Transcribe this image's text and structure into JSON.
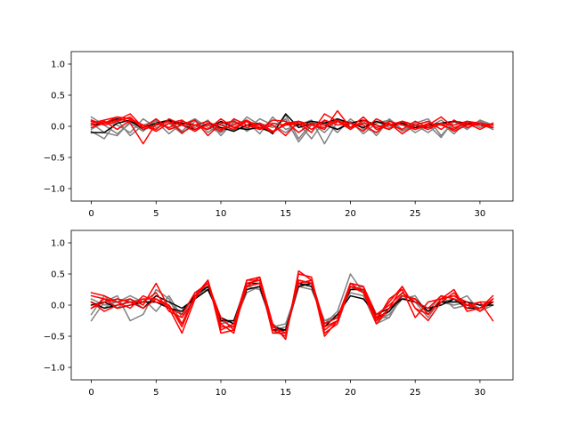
{
  "chart_data": [
    {
      "type": "line",
      "title": "",
      "xlabel": "",
      "ylabel": "",
      "xlim": [
        -1.55,
        32.55
      ],
      "ylim": [
        -1.2,
        1.2
      ],
      "grid": false,
      "xticks": [
        0,
        5,
        10,
        15,
        20,
        25,
        30
      ],
      "xtick_labels": [
        "0",
        "5",
        "10",
        "15",
        "20",
        "25",
        "30"
      ],
      "yticks": [
        1.0,
        0.5,
        0.0,
        -0.5,
        -1.0
      ],
      "ytick_labels": [
        "1.0",
        "0.5",
        "0.0",
        "−0.5",
        "−1.0"
      ],
      "x": [
        0,
        1,
        2,
        3,
        4,
        5,
        6,
        7,
        8,
        9,
        10,
        11,
        12,
        13,
        14,
        15,
        16,
        17,
        18,
        19,
        20,
        21,
        22,
        23,
        24,
        25,
        26,
        27,
        28,
        29,
        30,
        31
      ],
      "series": [
        {
          "color": "#808080",
          "values": [
            0.15,
            0.02,
            -0.12,
            0.05,
            -0.08,
            0.1,
            -0.05,
            0.02,
            0.12,
            -0.1,
            0.05,
            -0.08,
            0.15,
            0.02,
            -0.12,
            0.18,
            -0.2,
            0.05,
            -0.1,
            0.12,
            -0.05,
            0.08,
            -0.15,
            0.1,
            -0.08,
            0.05,
            0.12,
            -0.15,
            0.08,
            -0.05,
            0.1,
            0.02
          ]
        },
        {
          "color": "#808080",
          "values": [
            -0.08,
            -0.2,
            0.1,
            -0.15,
            0.02,
            0.08,
            -0.12,
            0.05,
            -0.02,
            0.1,
            -0.15,
            0.08,
            -0.05,
            0.12,
            0.02,
            -0.1,
            0.05,
            -0.2,
            0.1,
            -0.05,
            0.08,
            -0.12,
            0.05,
            0.1,
            -0.08,
            0.02,
            -0.1,
            0.05,
            -0.12,
            0.08,
            -0.02,
            0.05
          ]
        },
        {
          "color": "#808080",
          "values": [
            0.05,
            -0.1,
            -0.15,
            0.08,
            -0.05,
            0.02,
            0.1,
            -0.08,
            0.12,
            -0.02,
            -0.1,
            0.05,
            0.08,
            -0.12,
            0.15,
            -0.05,
            0.02,
            0.1,
            -0.28,
            0.08,
            0.05,
            -0.02,
            -0.1,
            0.12,
            -0.05,
            0.08,
            -0.02,
            0.1,
            -0.05,
            0.02,
            0.08,
            -0.02
          ]
        },
        {
          "color": "#808080",
          "values": [
            -0.05,
            0.08,
            0.02,
            -0.1,
            0.12,
            -0.02,
            0.05,
            -0.12,
            0.08,
            0.02,
            -0.05,
            0.1,
            -0.08,
            0.05,
            -0.02,
            0.12,
            -0.25,
            0.02,
            0.08,
            -0.1,
            0.12,
            -0.05,
            0.08,
            -0.02,
            0.05,
            -0.1,
            0.02,
            -0.18,
            0.1,
            -0.02,
            0.05,
            -0.05
          ]
        },
        {
          "color": "#000000",
          "values": [
            -0.1,
            -0.1,
            0.05,
            0.1,
            -0.05,
            0.02,
            0.08,
            0.02,
            -0.05,
            0.05,
            -0.02,
            -0.08,
            0.02,
            0.05,
            -0.12,
            0.2,
            -0.02,
            0.05,
            0.02,
            -0.05,
            0.05,
            0.1,
            0.02,
            -0.05,
            0.08,
            0.02,
            -0.02,
            0.05,
            0.08,
            0.05,
            0.02,
            -0.02
          ]
        },
        {
          "color": "#000000",
          "values": [
            0.02,
            0.05,
            0.12,
            0.08,
            -0.02,
            0.05,
            0.1,
            0.05,
            0.02,
            -0.05,
            0.08,
            -0.02,
            -0.05,
            -0.02,
            -0.1,
            0.05,
            0.02,
            0.08,
            0.05,
            0.12,
            0.05,
            -0.02,
            0.08,
            0.02,
            0.05,
            -0.02,
            0.02,
            0.05,
            0.08,
            0.02,
            0.05,
            0.02
          ]
        },
        {
          "color": "#ff0000",
          "values": [
            0.05,
            0.1,
            0.15,
            0.05,
            -0.28,
            0.05,
            -0.02,
            0.08,
            0.02,
            -0.05,
            0.12,
            -0.02,
            0.08,
            -0.05,
            0.02,
            -0.15,
            0.08,
            0.02,
            -0.05,
            0.25,
            -0.02,
            0.05,
            0.02,
            -0.05,
            0.08,
            0.02,
            -0.05,
            0.05,
            0.02,
            0.08,
            0.05,
            0.02
          ]
        },
        {
          "color": "#ff0000",
          "values": [
            0.08,
            0.05,
            0.1,
            0.2,
            -0.02,
            0.12,
            -0.05,
            0.02,
            0.1,
            -0.15,
            0.05,
            0.08,
            -0.02,
            0.05,
            -0.08,
            0.02,
            0.05,
            -0.1,
            0.2,
            0.08,
            -0.05,
            0.1,
            -0.02,
            0.05,
            -0.12,
            0.02,
            0.08,
            -0.05,
            0.1,
            -0.02,
            0.05,
            0.02
          ]
        },
        {
          "color": "#ff0000",
          "values": [
            -0.02,
            0.05,
            0.15,
            0.12,
            0.02,
            -0.08,
            0.05,
            0.1,
            -0.05,
            0.02,
            -0.08,
            0.12,
            0.02,
            -0.05,
            0.1,
            0.08,
            -0.1,
            0.05,
            0.02,
            0.1,
            -0.02,
            0.15,
            -0.05,
            0.02,
            0.08,
            -0.05,
            0.02,
            0.15,
            -0.02,
            0.05,
            -0.05,
            0.05
          ]
        },
        {
          "color": "#ff0000",
          "values": [
            0.1,
            0.02,
            0.08,
            0.15,
            -0.05,
            0.02,
            0.08,
            -0.1,
            0.02,
            0.08,
            -0.05,
            0.02,
            0.1,
            -0.02,
            0.05,
            0.02,
            0.08,
            -0.05,
            0.1,
            0.02,
            0.05,
            -0.08,
            0.12,
            0.02,
            -0.05,
            0.08,
            -0.02,
            0.05,
            -0.08,
            0.02,
            0.05,
            -0.02
          ]
        },
        {
          "color": "#ff0000",
          "values": [
            0.02,
            0.08,
            -0.05,
            0.1,
            0.02,
            -0.05,
            0.12,
            0.02,
            -0.08,
            0.05,
            0.02,
            -0.05,
            0.08,
            0.02,
            -0.1,
            0.05,
            0.08,
            0.02,
            -0.02,
            0.08,
            0.05,
            0.02,
            -0.1,
            0.08,
            0.02,
            -0.05,
            0.05,
            0.02,
            -0.05,
            0.08,
            0.02,
            -0.02
          ]
        }
      ]
    },
    {
      "type": "line",
      "title": "",
      "xlabel": "",
      "ylabel": "",
      "xlim": [
        -1.55,
        32.55
      ],
      "ylim": [
        -1.2,
        1.2
      ],
      "grid": false,
      "xticks": [
        0,
        5,
        10,
        15,
        20,
        25,
        30
      ],
      "xtick_labels": [
        "0",
        "5",
        "10",
        "15",
        "20",
        "25",
        "30"
      ],
      "yticks": [
        1.0,
        0.5,
        0.0,
        -0.5,
        -1.0
      ],
      "ytick_labels": [
        "1.0",
        "0.5",
        "0.0",
        "−0.5",
        "−1.0"
      ],
      "x": [
        0,
        1,
        2,
        3,
        4,
        5,
        6,
        7,
        8,
        9,
        10,
        11,
        12,
        13,
        14,
        15,
        16,
        17,
        18,
        19,
        20,
        21,
        22,
        23,
        24,
        25,
        26,
        27,
        28,
        29,
        30,
        31
      ],
      "series": [
        {
          "color": "#808080",
          "values": [
            -0.25,
            0.05,
            0.15,
            -0.25,
            -0.15,
            0.25,
            0.1,
            -0.3,
            0.2,
            0.3,
            -0.2,
            -0.3,
            0.2,
            0.3,
            -0.35,
            -0.3,
            0.3,
            0.4,
            -0.3,
            -0.1,
            0.5,
            0.2,
            -0.3,
            -0.1,
            0.2,
            0.05,
            -0.2,
            0.1,
            0.05,
            0.15,
            -0.1,
            0.05
          ]
        },
        {
          "color": "#808080",
          "values": [
            -0.15,
            0.15,
            -0.05,
            0.1,
            -0.05,
            0.15,
            0.05,
            -0.15,
            0.15,
            0.35,
            -0.3,
            -0.25,
            0.3,
            0.35,
            -0.4,
            -0.35,
            0.35,
            0.3,
            -0.25,
            -0.2,
            0.25,
            0.3,
            -0.25,
            -0.15,
            0.1,
            0.15,
            -0.15,
            0.05,
            0.1,
            0.05,
            -0.05,
            0.1
          ]
        },
        {
          "color": "#808080",
          "values": [
            0.05,
            -0.05,
            0.1,
            0.05,
            0.1,
            -0.1,
            0.15,
            -0.2,
            0.2,
            0.25,
            -0.2,
            -0.3,
            0.35,
            0.4,
            -0.45,
            -0.4,
            0.4,
            0.35,
            -0.35,
            -0.25,
            0.3,
            0.2,
            -0.2,
            -0.2,
            0.15,
            0.1,
            -0.1,
            0.05,
            0.0,
            0.05,
            0.0,
            0.05
          ]
        },
        {
          "color": "#808080",
          "values": [
            0.1,
            0.0,
            0.05,
            0.15,
            0.05,
            0.05,
            -0.05,
            -0.1,
            0.1,
            0.3,
            -0.25,
            -0.35,
            0.3,
            0.25,
            -0.3,
            -0.45,
            0.3,
            0.25,
            -0.25,
            -0.15,
            0.2,
            0.15,
            -0.3,
            -0.2,
            0.2,
            0.05,
            -0.1,
            0.15,
            -0.05,
            0.0,
            -0.1,
            0.0
          ]
        },
        {
          "color": "#000000",
          "values": [
            0.0,
            0.05,
            -0.05,
            0.0,
            0.05,
            0.05,
            -0.05,
            -0.1,
            0.15,
            0.3,
            -0.25,
            -0.25,
            0.35,
            0.35,
            -0.4,
            -0.4,
            0.35,
            0.3,
            -0.3,
            -0.2,
            0.25,
            0.25,
            -0.2,
            -0.1,
            0.15,
            0.1,
            -0.1,
            0.05,
            0.05,
            0.05,
            0.0,
            0.0
          ]
        },
        {
          "color": "#000000",
          "values": [
            0.05,
            -0.05,
            0.0,
            0.05,
            -0.05,
            0.15,
            0.05,
            -0.05,
            0.1,
            0.25,
            -0.2,
            -0.3,
            0.25,
            0.3,
            -0.35,
            -0.4,
            0.3,
            0.35,
            -0.35,
            -0.15,
            0.15,
            0.1,
            -0.15,
            -0.05,
            0.1,
            0.05,
            -0.05,
            0.0,
            0.1,
            -0.05,
            -0.05,
            0.05
          ]
        },
        {
          "color": "#ff0000",
          "values": [
            0.2,
            0.15,
            0.05,
            0.1,
            0.0,
            0.35,
            -0.05,
            -0.45,
            0.1,
            0.4,
            -0.45,
            -0.4,
            0.3,
            0.45,
            -0.3,
            -0.55,
            0.55,
            0.4,
            -0.5,
            -0.25,
            0.35,
            0.3,
            -0.25,
            0.1,
            0.25,
            -0.2,
            0.05,
            0.1,
            0.25,
            -0.1,
            -0.05,
            0.15
          ]
        },
        {
          "color": "#ff0000",
          "values": [
            0.05,
            -0.1,
            0.0,
            0.05,
            0.05,
            0.2,
            -0.1,
            -0.2,
            0.1,
            0.4,
            -0.3,
            -0.45,
            0.4,
            0.45,
            -0.4,
            -0.5,
            0.5,
            0.45,
            -0.45,
            -0.3,
            0.3,
            0.25,
            -0.25,
            -0.05,
            0.3,
            -0.05,
            -0.25,
            0.05,
            0.2,
            -0.05,
            0.05,
            -0.25
          ]
        },
        {
          "color": "#ff0000",
          "values": [
            -0.05,
            0.1,
            0.05,
            -0.05,
            0.15,
            0.05,
            0.0,
            -0.3,
            0.15,
            0.35,
            -0.2,
            -0.4,
            0.35,
            0.4,
            -0.45,
            -0.45,
            0.4,
            0.35,
            -0.4,
            -0.25,
            0.3,
            0.2,
            -0.3,
            -0.05,
            0.15,
            0.1,
            -0.15,
            0.1,
            0.15,
            0.05,
            -0.1,
            0.1
          ]
        },
        {
          "color": "#ff0000",
          "values": [
            0.15,
            0.1,
            -0.05,
            0.0,
            0.1,
            0.1,
            -0.05,
            -0.15,
            0.2,
            0.35,
            -0.35,
            -0.35,
            0.3,
            0.35,
            -0.35,
            -0.45,
            0.35,
            0.4,
            -0.3,
            -0.2,
            0.35,
            0.3,
            -0.15,
            0.0,
            0.2,
            0.05,
            -0.05,
            0.15,
            0.1,
            0.0,
            -0.05,
            0.1
          ]
        },
        {
          "color": "#ff0000",
          "values": [
            -0.05,
            0.05,
            0.1,
            0.05,
            -0.05,
            0.1,
            0.0,
            -0.35,
            0.15,
            0.4,
            -0.4,
            -0.3,
            0.4,
            0.4,
            -0.4,
            -0.5,
            0.4,
            0.35,
            -0.35,
            -0.25,
            0.35,
            0.2,
            -0.2,
            0.05,
            0.3,
            -0.05,
            -0.15,
            0.1,
            0.15,
            0.0,
            0.05,
            0.05
          ]
        }
      ]
    }
  ]
}
